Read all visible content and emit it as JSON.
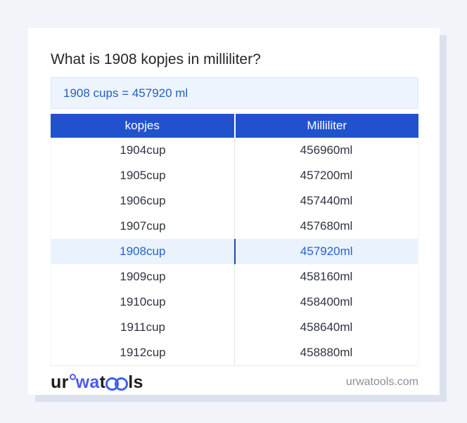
{
  "page": {
    "title": "What is 1908 kopjes in milliliter?",
    "answer": "1908 cups = 457920 ml"
  },
  "table": {
    "headers": {
      "cup": "kopjes",
      "ml": "Milliliter"
    },
    "highlighted_row_index": 4,
    "rows": [
      {
        "cup": "1904cup",
        "ml": "456960ml"
      },
      {
        "cup": "1905cup",
        "ml": "457200ml"
      },
      {
        "cup": "1906cup",
        "ml": "457440ml"
      },
      {
        "cup": "1907cup",
        "ml": "457680ml"
      },
      {
        "cup": "1908cup",
        "ml": "457920ml"
      },
      {
        "cup": "1909cup",
        "ml": "458160ml"
      },
      {
        "cup": "1910cup",
        "ml": "458400ml"
      },
      {
        "cup": "1911cup",
        "ml": "458640ml"
      },
      {
        "cup": "1912cup",
        "ml": "458880ml"
      }
    ]
  },
  "footer": {
    "logo": {
      "part1": "ur",
      "part2": "wa",
      "part3": "t",
      "part4": "ls"
    },
    "site": "urwatools.com"
  },
  "colors": {
    "header_blue": "#2152cd",
    "highlight_bg": "#e9f2fd",
    "highlight_text": "#2563c9",
    "answer_bg": "#edf4fd",
    "answer_text": "#2160c4",
    "page_bg": "#f2f4fa",
    "card_shadow": "#dbe1ee",
    "logo_indigo": "#4c5af0",
    "logo_ring_blue": "#3e63e8"
  }
}
